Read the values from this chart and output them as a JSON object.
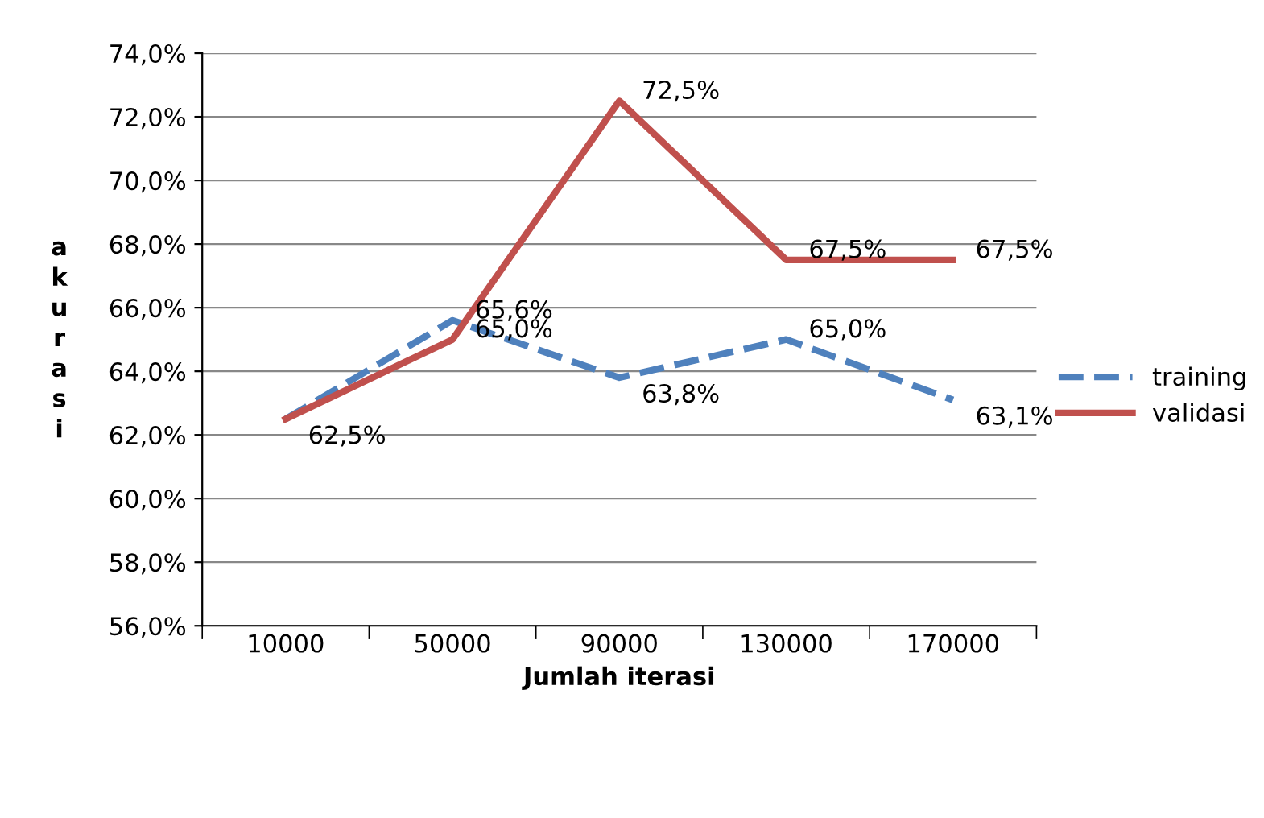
{
  "chart_data": {
    "type": "line",
    "xlabel": "Jumlah iterasi",
    "ylabel": "akurasi",
    "categories": [
      "10000",
      "50000",
      "90000",
      "130000",
      "170000"
    ],
    "series": [
      {
        "name": "training",
        "color": "#4f81bd",
        "line_style": "dashed",
        "values": [
          62.5,
          65.6,
          63.8,
          65.0,
          63.1
        ],
        "value_labels": [
          null,
          "65,6%",
          "63,8%",
          "65,0%",
          "63,1%"
        ]
      },
      {
        "name": "validasi",
        "color": "#c0504d",
        "line_style": "solid",
        "values": [
          62.5,
          65.0,
          72.5,
          67.5,
          67.5
        ],
        "value_labels": [
          "62,5%",
          "65,0%",
          "72,5%",
          "67,5%",
          "67,5%"
        ]
      }
    ],
    "ylim": [
      56,
      74
    ],
    "yticks": [
      {
        "value": 56,
        "label": "56,0%"
      },
      {
        "value": 58,
        "label": "58,0%"
      },
      {
        "value": 60,
        "label": "60,0%"
      },
      {
        "value": 62,
        "label": "62,0%"
      },
      {
        "value": 64,
        "label": "64,0%"
      },
      {
        "value": 66,
        "label": "66,0%"
      },
      {
        "value": 68,
        "label": "68,0%"
      },
      {
        "value": 70,
        "label": "70,0%"
      },
      {
        "value": 72,
        "label": "72,0%"
      },
      {
        "value": 74,
        "label": "74,0%"
      }
    ],
    "grid": "y",
    "legend": "right",
    "marker": "none"
  }
}
